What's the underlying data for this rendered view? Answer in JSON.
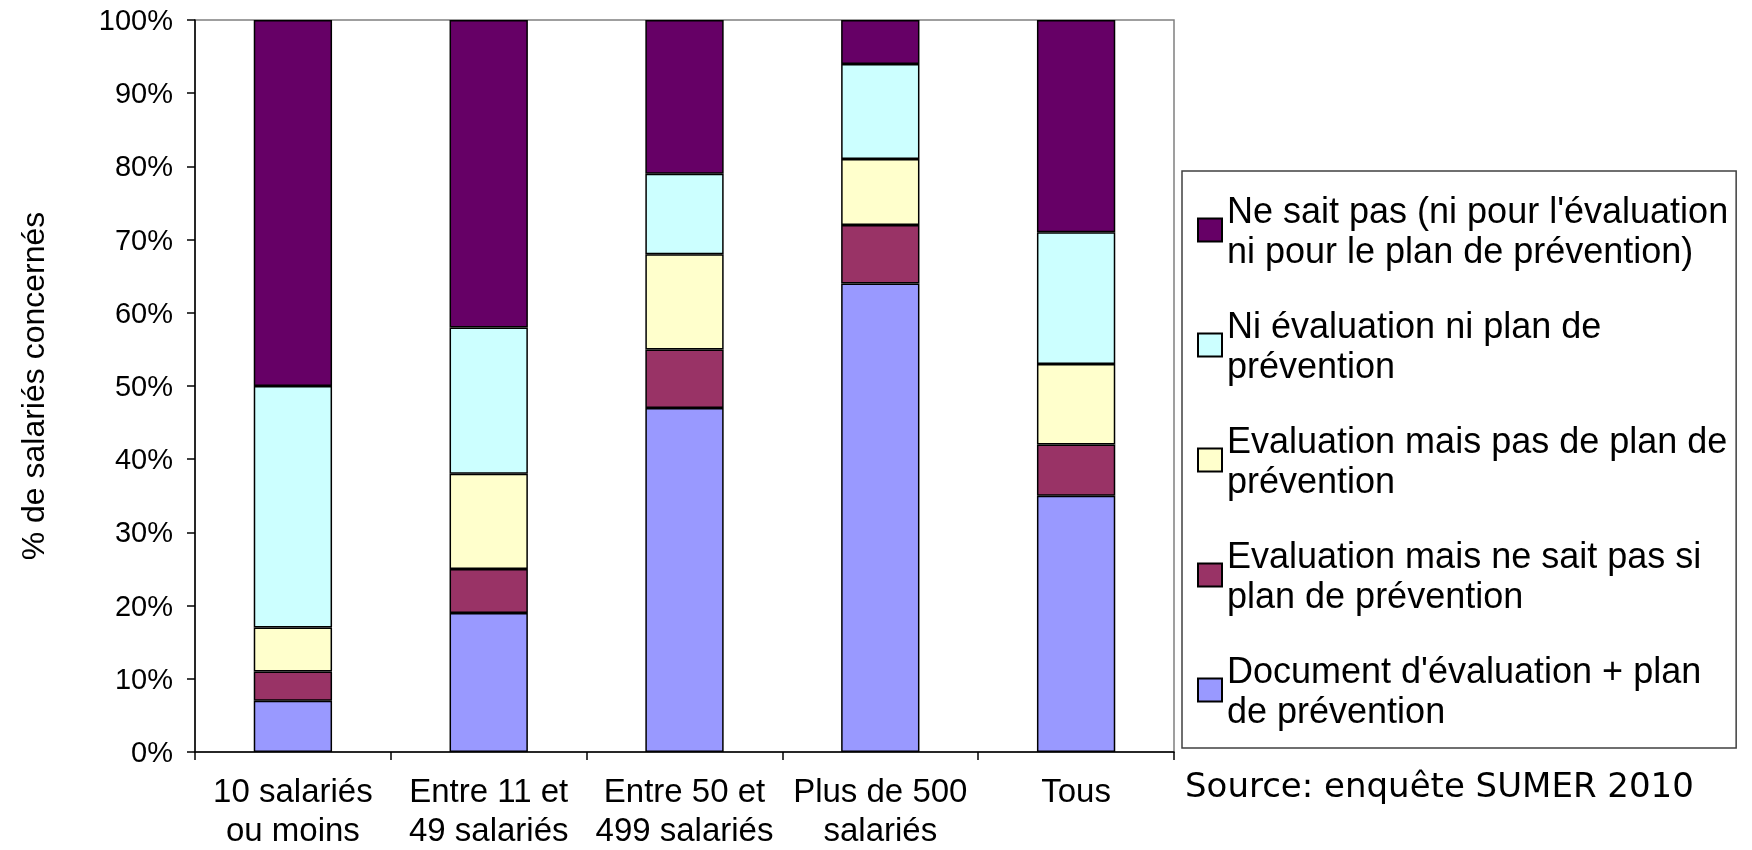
{
  "chart_data": {
    "type": "bar",
    "stacked": true,
    "ylabel": "% de salariés concernés",
    "categories": [
      "10 salariés ou moins",
      "Entre 11 et 49 salariés",
      "Entre 50 et 499 salariés",
      "Plus de 500 salariés",
      "Tous"
    ],
    "series": [
      {
        "name": "Document d'évaluation + plan de prévention",
        "color": "#9999ff",
        "values": [
          7,
          19,
          47,
          64,
          35
        ]
      },
      {
        "name": "Evaluation mais ne sait pas si plan de prévention",
        "color": "#993366",
        "values": [
          4,
          6,
          8,
          8,
          7
        ]
      },
      {
        "name": "Evaluation mais pas de plan de prévention",
        "color": "#ffffcc",
        "values": [
          6,
          13,
          13,
          9,
          11
        ]
      },
      {
        "name": "Ni évaluation ni plan de prévention",
        "color": "#ccffff",
        "values": [
          33,
          20,
          11,
          13,
          18
        ]
      },
      {
        "name": "Ne sait pas (ni pour l'évaluation ni pour le plan de prévention)",
        "color": "#660066",
        "values": [
          50,
          42,
          21,
          6,
          29
        ]
      }
    ],
    "ylim": [
      0,
      100
    ],
    "yticks": [
      {
        "value": 0,
        "label": "0%"
      },
      {
        "value": 10,
        "label": "10%"
      },
      {
        "value": 20,
        "label": "20%"
      },
      {
        "value": 30,
        "label": "30%"
      },
      {
        "value": 40,
        "label": "40%"
      },
      {
        "value": 50,
        "label": "50%"
      },
      {
        "value": 60,
        "label": "60%"
      },
      {
        "value": 70,
        "label": "70%"
      },
      {
        "value": 80,
        "label": "80%"
      },
      {
        "value": 90,
        "label": "90%"
      },
      {
        "value": 100,
        "label": "100%"
      }
    ],
    "grid": false,
    "legend": "right",
    "annotations": [
      "Source: enquête SUMER 2010"
    ]
  }
}
